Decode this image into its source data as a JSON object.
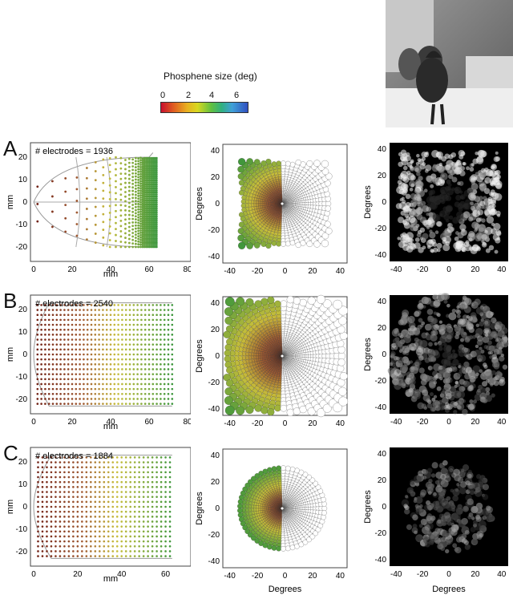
{
  "colorbar": {
    "title": "Phosphene size (deg)",
    "ticks": [
      "0",
      "2",
      "4",
      "6"
    ],
    "colors": [
      "#c8102e",
      "#e8a020",
      "#d8d020",
      "#40b040",
      "#40a0d0",
      "#3050c0"
    ]
  },
  "photo": {
    "icon": "cat-photo"
  },
  "rows": [
    {
      "letter": "A",
      "electrodes_label": "# electrodes = 1936",
      "cortex": {
        "xlabel": "mm",
        "ylabel": "mm",
        "xticks": [
          "0",
          "20",
          "40",
          "60",
          "80"
        ],
        "yticks": [
          "20",
          "10",
          "0",
          "-10",
          "-20"
        ]
      },
      "field": {
        "ylabel": "Degrees",
        "xticks": [
          "-40",
          "-20",
          "0",
          "20",
          "40"
        ],
        "yticks": [
          "40",
          "20",
          "0",
          "-20",
          "-40"
        ]
      },
      "render": {
        "ylabel": "Degrees",
        "xticks": [
          "-40",
          "-20",
          "0",
          "20",
          "40"
        ],
        "yticks": [
          "40",
          "20",
          "0",
          "-20",
          "-40"
        ]
      }
    },
    {
      "letter": "B",
      "electrodes_label": "# electrodes = 2540",
      "cortex": {
        "xlabel": "mm",
        "ylabel": "mm",
        "xticks": [
          "0",
          "20",
          "40",
          "60",
          "80"
        ],
        "yticks": [
          "20",
          "10",
          "0",
          "-10",
          "-20"
        ]
      },
      "field": {
        "ylabel": "Degrees",
        "xticks": [
          "-40",
          "-20",
          "0",
          "20",
          "40"
        ],
        "yticks": [
          "40",
          "20",
          "0",
          "-20",
          "-40"
        ]
      },
      "render": {
        "ylabel": "Degrees",
        "xticks": [
          "-40",
          "-20",
          "0",
          "20",
          "40"
        ],
        "yticks": [
          "40",
          "20",
          "0",
          "-20",
          "-40"
        ]
      }
    },
    {
      "letter": "C",
      "electrodes_label": "# electrodes = 1884",
      "cortex": {
        "xlabel": "mm",
        "ylabel": "mm",
        "xticks": [
          "0",
          "20",
          "40",
          "60"
        ],
        "yticks": [
          "20",
          "10",
          "0",
          "-10",
          "-20"
        ]
      },
      "field": {
        "xlabel": "Degrees",
        "ylabel": "Degrees",
        "xticks": [
          "-40",
          "-20",
          "0",
          "20",
          "40"
        ],
        "yticks": [
          "40",
          "20",
          "0",
          "-20",
          "-40"
        ]
      },
      "render": {
        "xlabel": "Degrees",
        "ylabel": "Degrees",
        "xticks": [
          "-40",
          "-20",
          "0",
          "20",
          "40"
        ],
        "yticks": [
          "40",
          "20",
          "0",
          "-20",
          "-40"
        ]
      }
    }
  ]
}
